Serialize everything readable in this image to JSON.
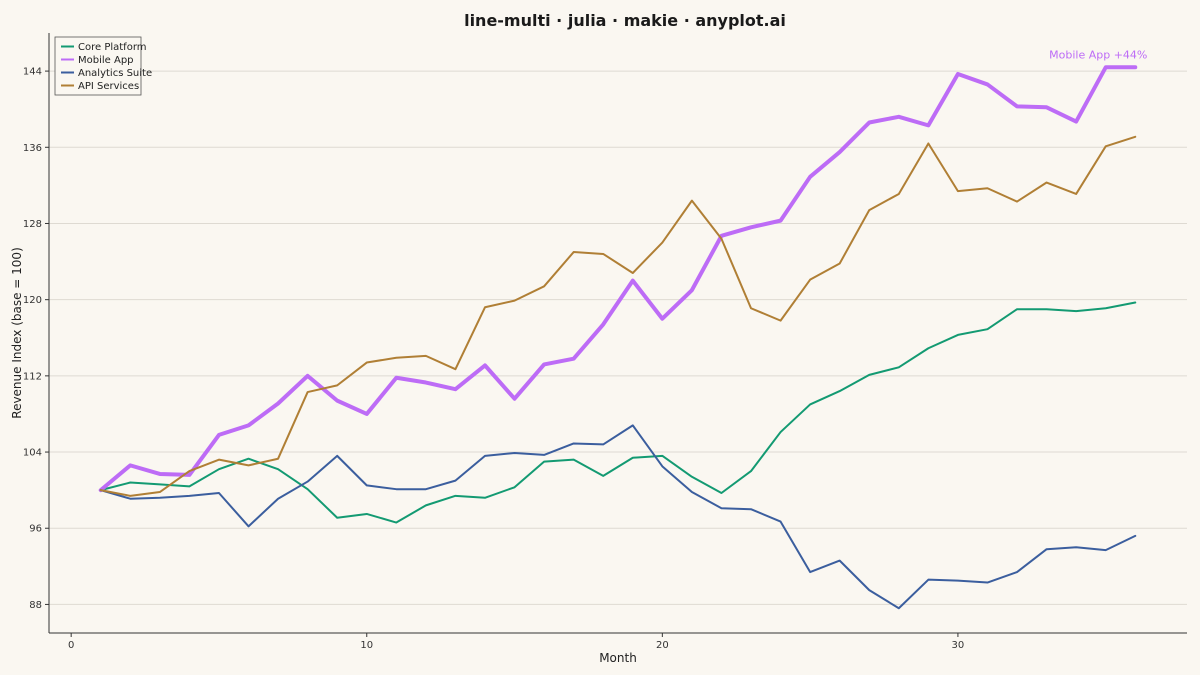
{
  "chart_data": {
    "type": "line",
    "title": "line-multi · julia · makie · anyplot.ai",
    "xlabel": "Month",
    "ylabel": "Revenue Index (base = 100)",
    "xlim": [
      -0.75,
      37.75
    ],
    "ylim": [
      85,
      148
    ],
    "xticks": [
      0,
      10,
      20,
      30
    ],
    "yticks": [
      88,
      96,
      104,
      112,
      120,
      128,
      136,
      144
    ],
    "grid": "horizontal",
    "legend_position": "top-left",
    "x": [
      1,
      2,
      3,
      4,
      5,
      6,
      7,
      8,
      9,
      10,
      11,
      12,
      13,
      14,
      15,
      16,
      17,
      18,
      19,
      20,
      21,
      22,
      23,
      24,
      25,
      26,
      27,
      28,
      29,
      30,
      31,
      32,
      33,
      34,
      35,
      36
    ],
    "series": [
      {
        "name": "Core Platform",
        "color": "#139A72",
        "width": 2,
        "values": [
          100,
          100.8,
          100.6,
          100.4,
          102.2,
          103.3,
          102.2,
          100.1,
          97.1,
          97.5,
          96.6,
          98.4,
          99.4,
          99.2,
          100.3,
          103.0,
          103.2,
          101.5,
          103.4,
          103.6,
          101.4,
          99.7,
          102.0,
          106.1,
          109.0,
          110.4,
          112.1,
          112.9,
          114.9,
          116.3,
          116.9,
          119.0,
          119.0,
          118.8,
          119.1,
          119.7
        ]
      },
      {
        "name": "Mobile App",
        "color": "#BD6CF6",
        "width": 4,
        "values": [
          100,
          102.6,
          101.7,
          101.6,
          105.8,
          106.8,
          109.1,
          112.0,
          109.4,
          108.0,
          111.8,
          111.3,
          110.6,
          113.1,
          109.6,
          113.2,
          113.8,
          117.4,
          122.0,
          118.0,
          121.0,
          126.7,
          127.6,
          128.3,
          132.9,
          135.5,
          138.6,
          139.2,
          138.3,
          143.7,
          142.6,
          140.3,
          140.2,
          138.7,
          144.4,
          144.4
        ]
      },
      {
        "name": "Analytics Suite",
        "color": "#3B5E9E",
        "width": 2,
        "values": [
          100,
          99.1,
          99.2,
          99.4,
          99.7,
          96.2,
          99.1,
          100.9,
          103.6,
          100.5,
          100.1,
          100.1,
          101.0,
          103.6,
          103.9,
          103.7,
          104.9,
          104.8,
          106.8,
          102.5,
          99.8,
          98.1,
          98.0,
          96.7,
          91.4,
          92.6,
          89.5,
          87.6,
          90.6,
          90.5,
          90.3,
          91.4,
          93.8,
          94.0,
          93.7,
          95.2
        ]
      },
      {
        "name": "API Services",
        "color": "#B07F35",
        "width": 2,
        "values": [
          100,
          99.4,
          99.8,
          102.0,
          103.2,
          102.6,
          103.3,
          110.3,
          111.0,
          113.4,
          113.9,
          114.1,
          112.7,
          119.2,
          119.9,
          121.4,
          125.0,
          124.8,
          122.8,
          126.0,
          130.4,
          126.4,
          119.1,
          117.8,
          122.1,
          123.8,
          129.4,
          131.1,
          136.4,
          131.4,
          131.7,
          130.3,
          132.3,
          131.1,
          136.1,
          137.1
        ]
      }
    ],
    "annotations": [
      {
        "text": "Mobile App +44%",
        "color": "#BD6CF6"
      }
    ]
  }
}
